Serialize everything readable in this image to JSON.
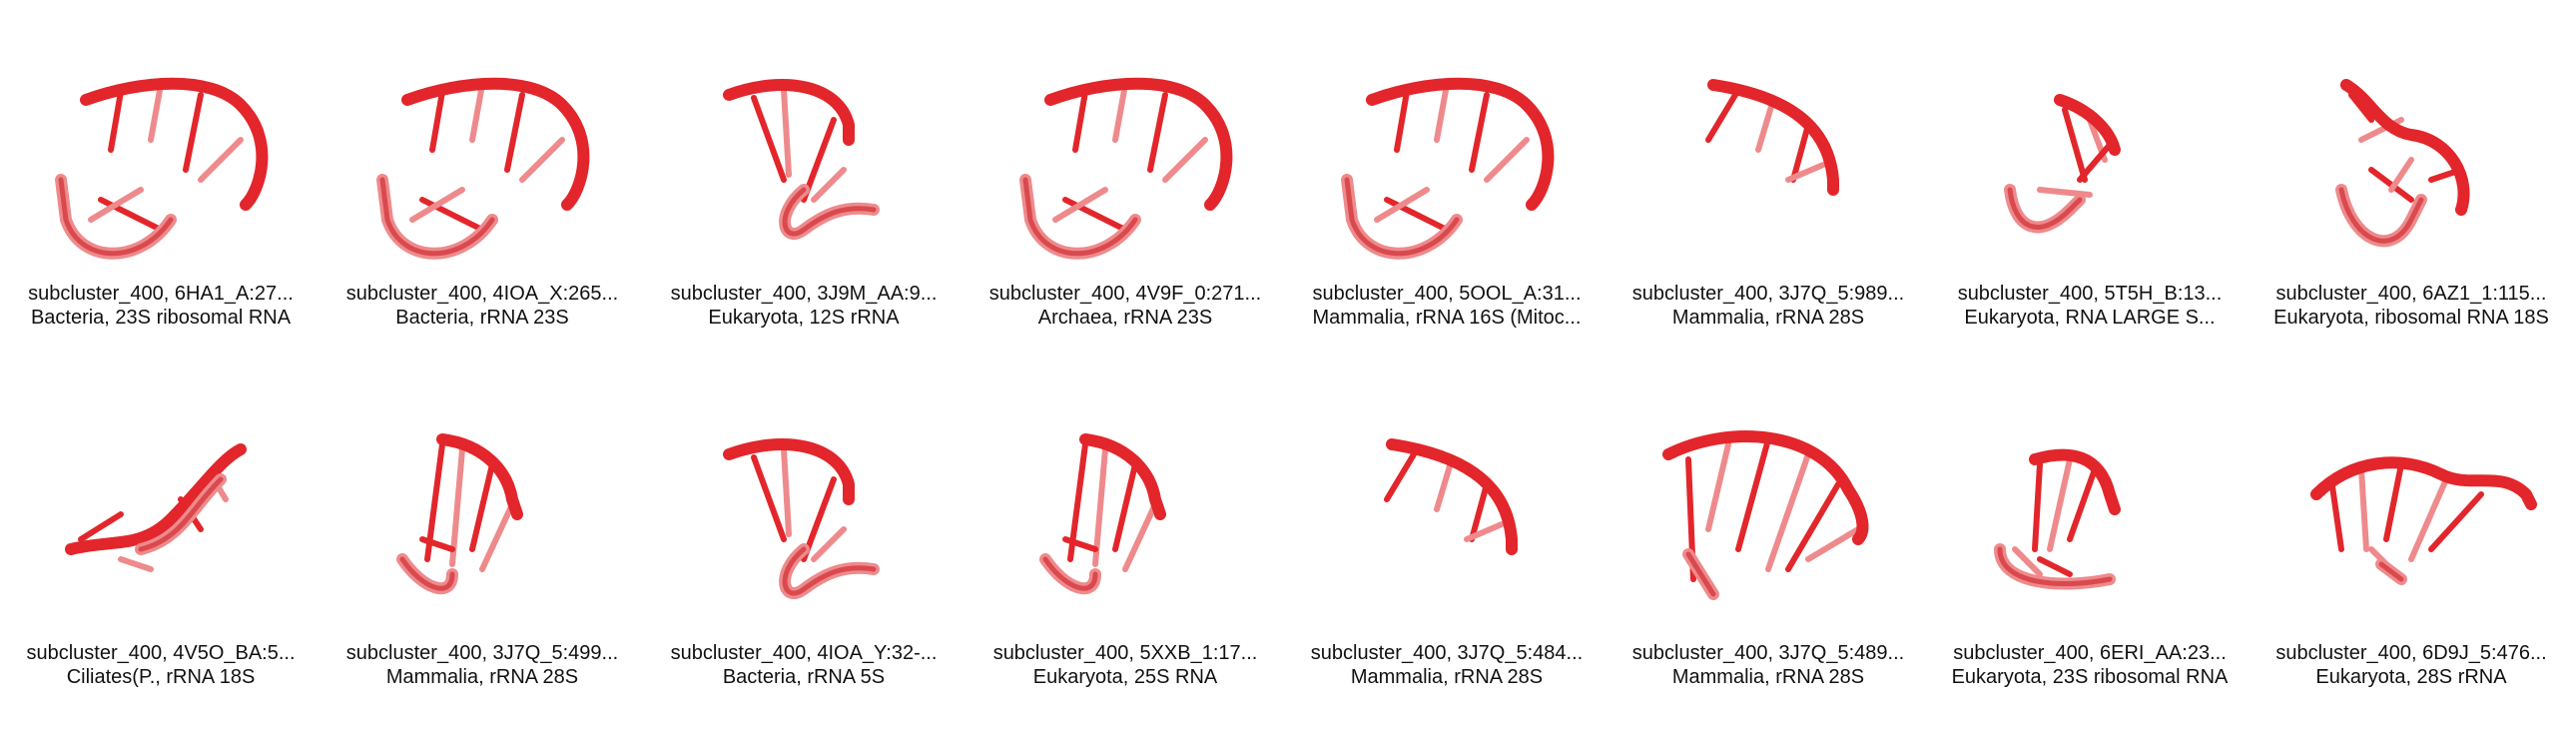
{
  "colors": {
    "strand_dark": "#c8141c",
    "strand_mid": "#e2262b",
    "strand_light": "#ee8a8c",
    "text": "#111111"
  },
  "tiles": [
    {
      "id": "subcluster_400, 6HA1_A:27...",
      "desc": "Bacteria, 23S ribosomal RNA",
      "shape": "arc-c"
    },
    {
      "id": "subcluster_400, 4IOA_X:265...",
      "desc": "Bacteria, rRNA 23S",
      "shape": "arc-c"
    },
    {
      "id": "subcluster_400, 3J9M_AA:9...",
      "desc": "Eukaryota, 12S rRNA",
      "shape": "hook"
    },
    {
      "id": "subcluster_400, 4V9F_0:271...",
      "desc": "Archaea, rRNA 23S",
      "shape": "arc-c"
    },
    {
      "id": "subcluster_400, 5OOL_A:31...",
      "desc": "Mammalia, rRNA 16S (Mitoc...",
      "shape": "arc-c"
    },
    {
      "id": "subcluster_400, 3J7Q_5:989...",
      "desc": "Mammalia, rRNA 28S",
      "shape": "arc-open"
    },
    {
      "id": "subcluster_400, 5T5H_B:13...",
      "desc": "Eukaryota, RNA LARGE S...",
      "shape": "hook-small"
    },
    {
      "id": "subcluster_400, 6AZ1_1:115...",
      "desc": "Eukaryota, ribosomal RNA 18S",
      "shape": "wave"
    },
    {
      "id": "subcluster_400, 4V5O_BA:5...",
      "desc": "Ciliates(P., rRNA 18S",
      "shape": "twist"
    },
    {
      "id": "subcluster_400, 3J7Q_5:499...",
      "desc": "Mammalia, rRNA 28S",
      "shape": "stem"
    },
    {
      "id": "subcluster_400, 4IOA_Y:32-...",
      "desc": "Bacteria, rRNA 5S",
      "shape": "hook"
    },
    {
      "id": "subcluster_400, 5XXB_1:17...",
      "desc": "Eukaryota, 25S RNA",
      "shape": "stem"
    },
    {
      "id": "subcluster_400, 3J7Q_5:484...",
      "desc": "Mammalia, rRNA 28S",
      "shape": "arc-open"
    },
    {
      "id": "subcluster_400, 3J7Q_5:489...",
      "desc": "Mammalia, rRNA 28S",
      "shape": "arc-big"
    },
    {
      "id": "subcluster_400, 6ERI_AA:23...",
      "desc": "Eukaryota, 23S ribosomal RNA",
      "shape": "cup"
    },
    {
      "id": "subcluster_400, 6D9J_5:476...",
      "desc": "Eukaryota, 28S rRNA",
      "shape": "wave-wide"
    }
  ]
}
